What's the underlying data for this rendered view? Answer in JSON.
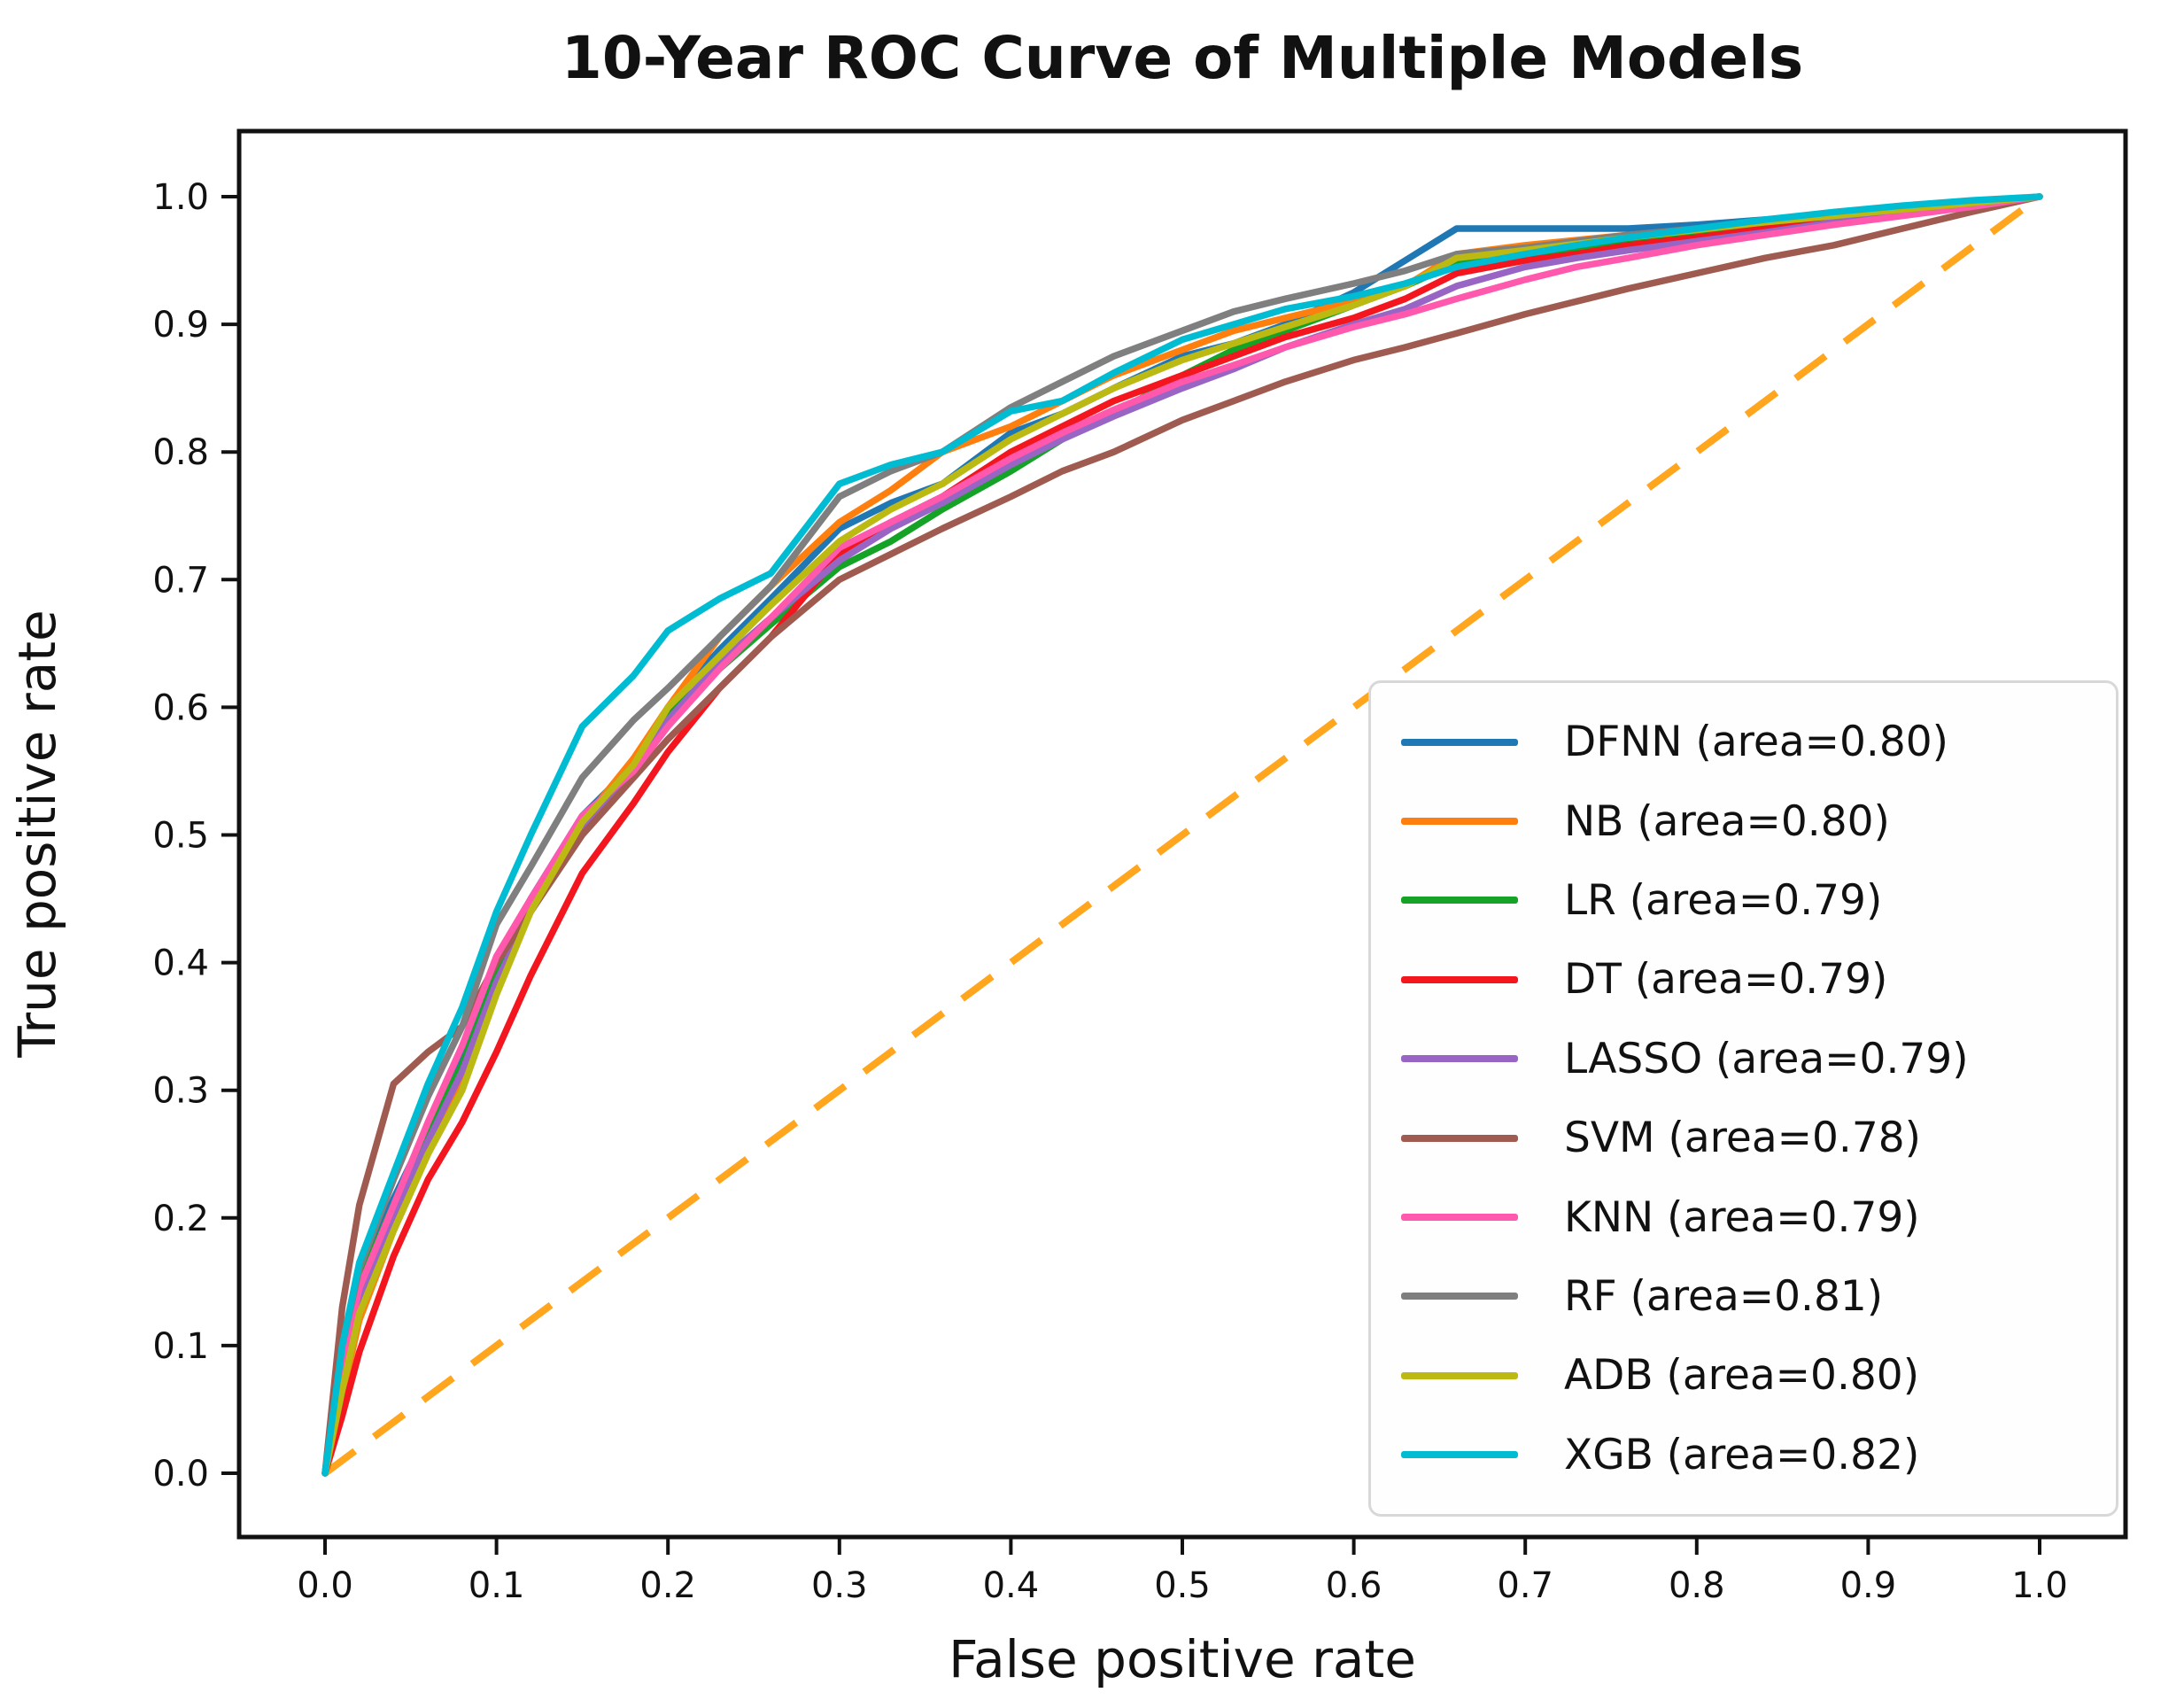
{
  "chart_data": {
    "type": "line",
    "title": "10-Year ROC Curve of Multiple Models",
    "xlabel": "False positive rate",
    "ylabel": "True positive rate",
    "xlim": [
      0,
      1
    ],
    "ylim": [
      0,
      1
    ],
    "grid": false,
    "legend_position": "lower right",
    "x_ticks": [
      "0.0",
      "0.1",
      "0.2",
      "0.3",
      "0.4",
      "0.5",
      "0.6",
      "0.7",
      "0.8",
      "0.9",
      "1.0"
    ],
    "y_ticks": [
      "0.0",
      "0.1",
      "0.2",
      "0.3",
      "0.4",
      "0.5",
      "0.6",
      "0.7",
      "0.8",
      "0.9",
      "1.0"
    ],
    "reference_line": {
      "style": "dashed",
      "color": "#FFA61E",
      "from": [
        0,
        0
      ],
      "to": [
        1,
        1
      ]
    },
    "x": [
      0,
      0.01,
      0.02,
      0.04,
      0.06,
      0.08,
      0.1,
      0.12,
      0.15,
      0.18,
      0.2,
      0.23,
      0.26,
      0.3,
      0.33,
      0.36,
      0.4,
      0.43,
      0.46,
      0.5,
      0.53,
      0.56,
      0.6,
      0.63,
      0.66,
      0.7,
      0.73,
      0.76,
      0.8,
      0.84,
      0.88,
      0.92,
      0.96,
      1.0
    ],
    "series": [
      {
        "name": "DFNN",
        "area": 0.8,
        "label": "DFNN (area=0.80)",
        "color": "#1f77b4",
        "y": [
          0,
          0.1,
          0.155,
          0.215,
          0.27,
          0.325,
          0.4,
          0.45,
          0.515,
          0.555,
          0.6,
          0.645,
          0.685,
          0.74,
          0.76,
          0.775,
          0.815,
          0.83,
          0.85,
          0.875,
          0.885,
          0.9,
          0.925,
          0.95,
          0.975,
          0.975,
          0.975,
          0.975,
          0.978,
          0.982,
          0.986,
          0.99,
          0.995,
          1.0
        ]
      },
      {
        "name": "NB",
        "area": 0.8,
        "label": "NB (area=0.80)",
        "color": "#ff7f0e",
        "y": [
          0,
          0.06,
          0.12,
          0.19,
          0.25,
          0.31,
          0.385,
          0.445,
          0.51,
          0.56,
          0.6,
          0.655,
          0.695,
          0.745,
          0.77,
          0.8,
          0.82,
          0.84,
          0.86,
          0.88,
          0.895,
          0.905,
          0.918,
          0.93,
          0.955,
          0.962,
          0.966,
          0.97,
          0.974,
          0.978,
          0.984,
          0.988,
          0.994,
          1.0
        ]
      },
      {
        "name": "LR",
        "area": 0.79,
        "label": "LR (area=0.79)",
        "color": "#14a327",
        "y": [
          0,
          0.09,
          0.15,
          0.21,
          0.27,
          0.32,
          0.39,
          0.445,
          0.51,
          0.555,
          0.595,
          0.63,
          0.665,
          0.71,
          0.73,
          0.755,
          0.785,
          0.81,
          0.83,
          0.86,
          0.88,
          0.895,
          0.915,
          0.93,
          0.948,
          0.955,
          0.96,
          0.965,
          0.97,
          0.976,
          0.984,
          0.99,
          0.995,
          1.0
        ]
      },
      {
        "name": "DT",
        "area": 0.79,
        "label": "DT (area=0.79)",
        "color": "#f3161e",
        "y": [
          0,
          0.045,
          0.095,
          0.17,
          0.23,
          0.275,
          0.33,
          0.39,
          0.47,
          0.525,
          0.565,
          0.615,
          0.655,
          0.72,
          0.745,
          0.765,
          0.8,
          0.82,
          0.84,
          0.86,
          0.875,
          0.89,
          0.905,
          0.92,
          0.94,
          0.95,
          0.955,
          0.962,
          0.968,
          0.975,
          0.982,
          0.988,
          0.994,
          1.0
        ]
      },
      {
        "name": "LASSO",
        "area": 0.79,
        "label": "LASSO (area=0.79)",
        "color": "#9865c5",
        "y": [
          0,
          0.075,
          0.135,
          0.2,
          0.26,
          0.315,
          0.385,
          0.44,
          0.505,
          0.55,
          0.59,
          0.635,
          0.67,
          0.715,
          0.74,
          0.76,
          0.79,
          0.81,
          0.828,
          0.85,
          0.865,
          0.882,
          0.9,
          0.912,
          0.93,
          0.945,
          0.952,
          0.958,
          0.965,
          0.972,
          0.98,
          0.986,
          0.993,
          1.0
        ]
      },
      {
        "name": "SVM",
        "area": 0.78,
        "label": "SVM (area=0.78)",
        "color": "#a05b50",
        "y": [
          0,
          0.13,
          0.21,
          0.305,
          0.33,
          0.35,
          0.4,
          0.44,
          0.5,
          0.545,
          0.575,
          0.615,
          0.655,
          0.7,
          0.72,
          0.74,
          0.765,
          0.785,
          0.8,
          0.825,
          0.84,
          0.855,
          0.872,
          0.882,
          0.893,
          0.908,
          0.918,
          0.928,
          0.94,
          0.952,
          0.962,
          0.975,
          0.988,
          1.0
        ]
      },
      {
        "name": "KNN",
        "area": 0.79,
        "label": "KNN (area=0.79)",
        "color": "#ff58ad",
        "y": [
          0,
          0.085,
          0.145,
          0.21,
          0.275,
          0.335,
          0.405,
          0.45,
          0.515,
          0.55,
          0.585,
          0.63,
          0.67,
          0.725,
          0.745,
          0.765,
          0.795,
          0.815,
          0.833,
          0.855,
          0.868,
          0.882,
          0.898,
          0.908,
          0.92,
          0.935,
          0.945,
          0.952,
          0.962,
          0.97,
          0.978,
          0.985,
          0.992,
          1.0
        ]
      },
      {
        "name": "RF",
        "area": 0.81,
        "label": "RF (area=0.81)",
        "color": "#7f7f7f",
        "y": [
          0,
          0.1,
          0.16,
          0.23,
          0.295,
          0.35,
          0.43,
          0.475,
          0.545,
          0.59,
          0.615,
          0.655,
          0.695,
          0.765,
          0.785,
          0.8,
          0.835,
          0.855,
          0.875,
          0.895,
          0.91,
          0.92,
          0.932,
          0.942,
          0.955,
          0.96,
          0.965,
          0.97,
          0.975,
          0.98,
          0.985,
          0.99,
          0.995,
          1.0
        ]
      },
      {
        "name": "ADB",
        "area": 0.8,
        "label": "ADB (area=0.80)",
        "color": "#bcb912",
        "y": [
          0,
          0.065,
          0.125,
          0.19,
          0.25,
          0.3,
          0.375,
          0.44,
          0.51,
          0.555,
          0.6,
          0.64,
          0.68,
          0.73,
          0.755,
          0.775,
          0.81,
          0.83,
          0.85,
          0.872,
          0.885,
          0.898,
          0.915,
          0.93,
          0.952,
          0.958,
          0.963,
          0.968,
          0.974,
          0.98,
          0.985,
          0.99,
          0.995,
          1.0
        ]
      },
      {
        "name": "XGB",
        "area": 0.82,
        "label": "XGB (area=0.82)",
        "color": "#00bcd2",
        "y": [
          0,
          0.1,
          0.165,
          0.235,
          0.305,
          0.365,
          0.44,
          0.5,
          0.585,
          0.625,
          0.66,
          0.685,
          0.705,
          0.775,
          0.79,
          0.8,
          0.832,
          0.84,
          0.862,
          0.888,
          0.9,
          0.912,
          0.922,
          0.932,
          0.945,
          0.955,
          0.962,
          0.968,
          0.975,
          0.982,
          0.988,
          0.993,
          0.997,
          1.0
        ]
      }
    ]
  }
}
